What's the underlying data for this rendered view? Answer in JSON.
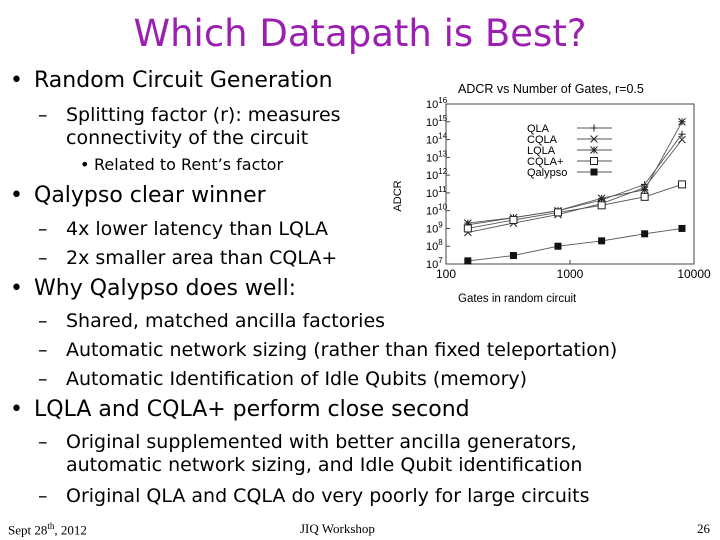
{
  "slide": {
    "title": "Which Datapath is Best?",
    "bullets": [
      "Random Circuit Generation",
      "Qalypso clear winner",
      "Why Qalypso does well:",
      "LQLA and CQLA+ perform close second"
    ],
    "sub1": [
      "Splitting factor (r): measures",
      "connectivity of the circuit"
    ],
    "sub1_1": "Related to Rent’s factor",
    "sub2": [
      "4x lower latency than LQLA",
      "2x smaller area than CQLA+"
    ],
    "sub3": [
      "Shared, matched ancilla factories",
      "Automatic network sizing (rather than fixed teleportation)",
      "Automatic Identification of Idle Qubits (memory)"
    ],
    "sub4": [
      "Original supplemented with better ancilla generators,",
      "automatic network sizing, and Idle Qubit identification",
      "Original QLA and CQLA do very poorly for large circuits"
    ]
  },
  "footer": {
    "date_prefix": "Sept 28",
    "date_sup": "th",
    "date_suffix": ", 2012",
    "center": "JIQ Workshop",
    "page": "26"
  },
  "chart_data": {
    "type": "line",
    "title": "ADCR vs Number of Gates, r=0.5",
    "xlabel": "Gates in random circuit",
    "ylabel": "ADCR",
    "xscale": "log",
    "yscale": "log",
    "xlim": [
      100,
      10000
    ],
    "ylim": [
      10000000.0,
      1e+16
    ],
    "xticks": [
      100,
      1000,
      10000
    ],
    "xtick_labels": [
      "100",
      "1000",
      "10000"
    ],
    "yticks": [
      7,
      8,
      9,
      10,
      11,
      12,
      13,
      14,
      15,
      16
    ],
    "legend_position": "top-right",
    "series": [
      {
        "name": "QLA",
        "marker": "plus",
        "x": [
          150,
          350,
          800,
          1800,
          4000,
          8000
        ],
        "y": [
          1600000000.0,
          4000000000.0,
          10000000000.0,
          40000000000.0,
          300000000000.0,
          200000000000000.0
        ]
      },
      {
        "name": "CQLA",
        "marker": "x",
        "x": [
          150,
          350,
          800,
          1800,
          4000,
          8000
        ],
        "y": [
          600000000.0,
          2000000000.0,
          6000000000.0,
          25000000000.0,
          200000000000.0,
          100000000000000.0
        ]
      },
      {
        "name": "LQLA",
        "marker": "asterisk",
        "x": [
          150,
          350,
          800,
          1800,
          4000,
          8000
        ],
        "y": [
          2000000000.0,
          4000000000.0,
          10000000000.0,
          50000000000.0,
          150000000000.0,
          1000000000000000.0
        ]
      },
      {
        "name": "CQLA+",
        "marker": "square",
        "x": [
          150,
          350,
          800,
          1800,
          4000,
          8000
        ],
        "y": [
          1000000000.0,
          3000000000.0,
          8000000000.0,
          20000000000.0,
          60000000000.0,
          300000000000.0
        ]
      },
      {
        "name": "Qalypso",
        "marker": "filled-square",
        "x": [
          150,
          350,
          800,
          1800,
          4000,
          8000
        ],
        "y": [
          15000000.0,
          30000000.0,
          100000000.0,
          200000000.0,
          500000000.0,
          1000000000.0
        ]
      }
    ]
  }
}
